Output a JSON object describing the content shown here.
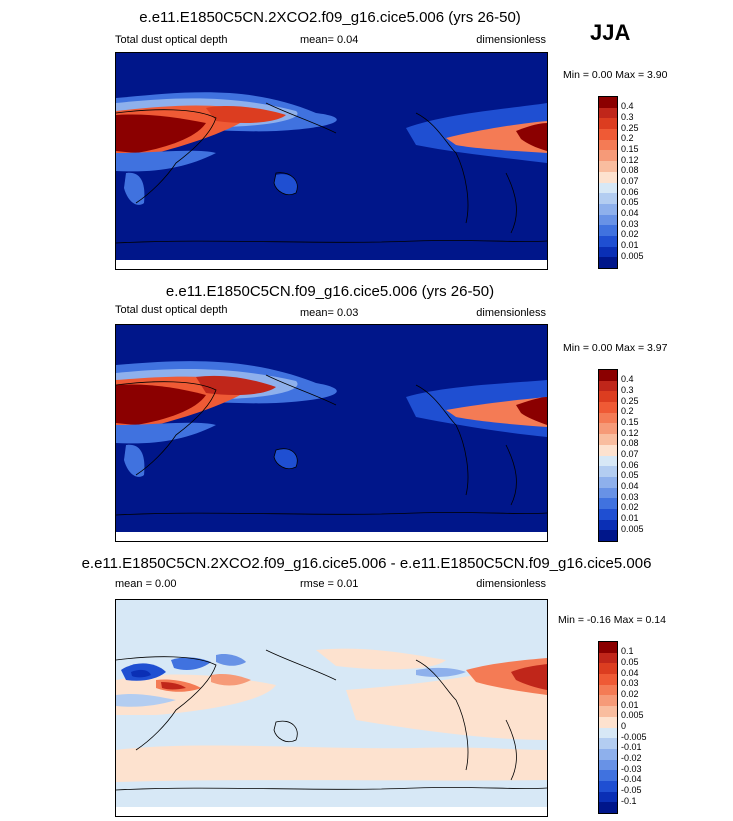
{
  "season_label": "JJA",
  "panels": [
    {
      "title": "e.e11.E1850C5CN.2XCO2.f09_g16.cice5.006 (yrs 26-50)",
      "left_label": "Total dust optical depth",
      "center_label": "mean=  0.04",
      "right_label": "dimensionless",
      "minmax": "Min =  0.00 Max =  3.90",
      "colorbar": {
        "labels": [
          "0.4",
          "0.3",
          "0.25",
          "0.2",
          "0.15",
          "0.12",
          "0.08",
          "0.07",
          "0.06",
          "0.05",
          "0.04",
          "0.03",
          "0.02",
          "0.01",
          "0.005"
        ],
        "colors": [
          "#8b0000",
          "#c0261a",
          "#dc3d20",
          "#ef5a35",
          "#f47b55",
          "#f69a78",
          "#f9bd9f",
          "#fde2cf",
          "#d7e8f6",
          "#b3cdf1",
          "#8eb0ec",
          "#6892e6",
          "#4072df",
          "#1f4fd2",
          "#0a2fb5",
          "#00168a"
        ]
      }
    },
    {
      "title": "e.e11.E1850C5CN.f09_g16.cice5.006 (yrs 26-50)",
      "left_label": "Total dust optical depth",
      "center_label": "mean=  0.03",
      "right_label": "dimensionless",
      "minmax": "Min =  0.00 Max =  3.97",
      "colorbar": {
        "labels": [
          "0.4",
          "0.3",
          "0.25",
          "0.2",
          "0.15",
          "0.12",
          "0.08",
          "0.07",
          "0.06",
          "0.05",
          "0.04",
          "0.03",
          "0.02",
          "0.01",
          "0.005"
        ],
        "colors": [
          "#8b0000",
          "#c0261a",
          "#dc3d20",
          "#ef5a35",
          "#f47b55",
          "#f69a78",
          "#f9bd9f",
          "#fde2cf",
          "#d7e8f6",
          "#b3cdf1",
          "#8eb0ec",
          "#6892e6",
          "#4072df",
          "#1f4fd2",
          "#0a2fb5",
          "#00168a"
        ]
      }
    },
    {
      "title": "e.e11.E1850C5CN.2XCO2.f09_g16.cice5.006 - e.e11.E1850C5CN.f09_g16.cice5.006",
      "left_label": "mean =  0.00",
      "center_label": "rmse =  0.01",
      "right_label": "dimensionless",
      "minmax": "Min = -0.16 Max =  0.14",
      "colorbar": {
        "labels": [
          "0.1",
          "0.05",
          "0.04",
          "0.03",
          "0.02",
          "0.01",
          "0.005",
          "0",
          "-0.005",
          "-0.01",
          "-0.02",
          "-0.03",
          "-0.04",
          "-0.05",
          "-0.1"
        ],
        "colors": [
          "#8b0000",
          "#c0261a",
          "#dc3d20",
          "#ef5a35",
          "#f47b55",
          "#f69a78",
          "#f9bd9f",
          "#fde2cf",
          "#d7e8f6",
          "#b3cdf1",
          "#8eb0ec",
          "#6892e6",
          "#4072df",
          "#1f4fd2",
          "#0a2fb5",
          "#00168a"
        ]
      }
    }
  ]
}
